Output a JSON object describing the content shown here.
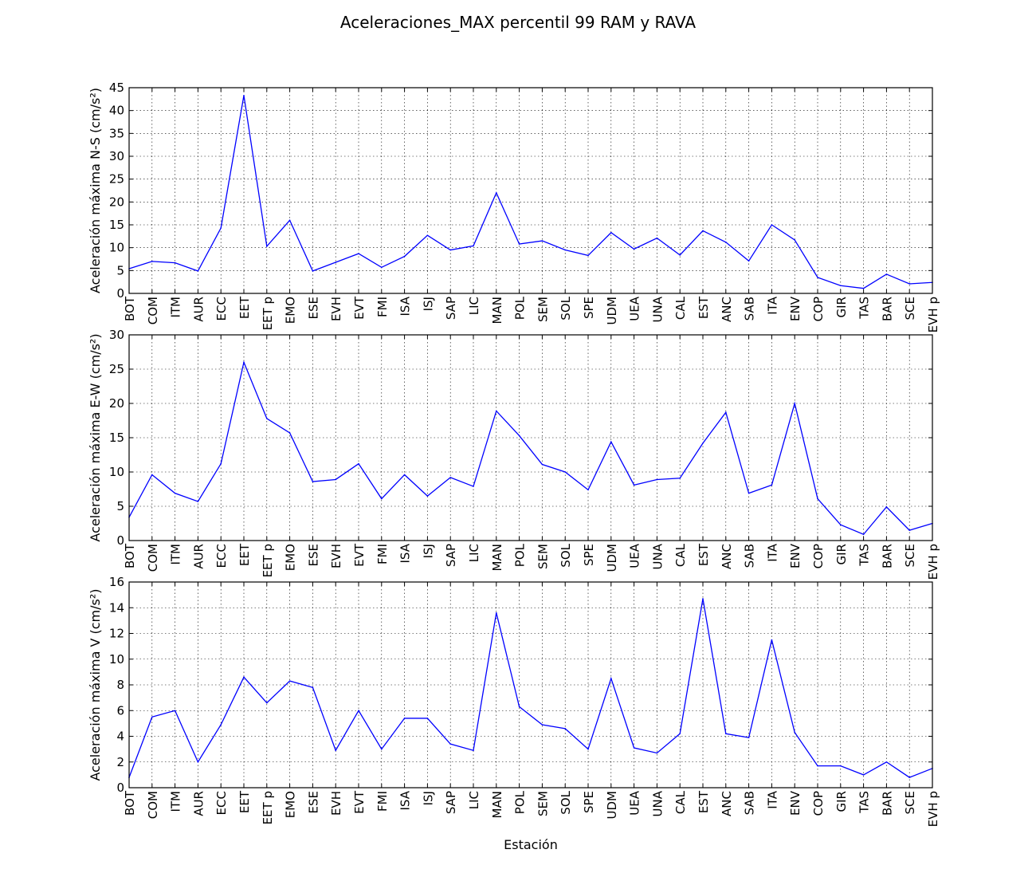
{
  "title": "Aceleraciones_MAX percentil 99 RAM y RAVA",
  "xlabel": "Estación",
  "line_color": "#0000ff",
  "chart_data": [
    {
      "type": "line",
      "ylabel": "Aceleración máxima N-S (cm/s²)",
      "ylim": [
        0,
        45
      ],
      "yticks": [
        0,
        5,
        10,
        15,
        20,
        25,
        30,
        35,
        40,
        45
      ],
      "grid": true,
      "categories": [
        "BOT",
        "COM",
        "ITM",
        "AUR",
        "ECC",
        "EET",
        "EET p",
        "EMO",
        "ESE",
        "EVH",
        "EVT",
        "FMI",
        "ISA",
        "ISJ",
        "SAP",
        "LIC",
        "MAN",
        "POL",
        "SEM",
        "SOL",
        "SPE",
        "UDM",
        "UEA",
        "UNA",
        "CAL",
        "EST",
        "ANC",
        "SAB",
        "ITA",
        "ENV",
        "COP",
        "GIR",
        "TAS",
        "BAR",
        "SCE",
        "EVH p"
      ],
      "values": [
        5.4,
        7.0,
        6.7,
        4.9,
        14.3,
        43.3,
        10.3,
        16.0,
        4.9,
        6.8,
        8.7,
        5.7,
        8.1,
        12.7,
        9.5,
        10.4,
        22.0,
        10.8,
        11.5,
        9.5,
        8.3,
        13.3,
        9.7,
        12.1,
        8.4,
        13.7,
        11.2,
        7.1,
        15.0,
        11.7,
        3.5,
        1.7,
        1.1,
        4.2,
        2.1,
        2.4
      ]
    },
    {
      "type": "line",
      "ylabel": "Aceleración máxima E-W (cm/s²)",
      "ylim": [
        0,
        30
      ],
      "yticks": [
        0,
        5,
        10,
        15,
        20,
        25,
        30
      ],
      "grid": true,
      "categories": [
        "BOT",
        "COM",
        "ITM",
        "AUR",
        "ECC",
        "EET",
        "EET p",
        "EMO",
        "ESE",
        "EVH",
        "EVT",
        "FMI",
        "ISA",
        "ISJ",
        "SAP",
        "LIC",
        "MAN",
        "POL",
        "SEM",
        "SOL",
        "SPE",
        "UDM",
        "UEA",
        "UNA",
        "CAL",
        "EST",
        "ANC",
        "SAB",
        "ITA",
        "ENV",
        "COP",
        "GIR",
        "TAS",
        "BAR",
        "SCE",
        "EVH p"
      ],
      "values": [
        3.4,
        9.6,
        6.9,
        5.7,
        11.2,
        26.0,
        17.8,
        15.7,
        8.6,
        8.9,
        11.2,
        6.1,
        9.6,
        6.5,
        9.2,
        7.9,
        18.9,
        15.3,
        11.1,
        10.0,
        7.4,
        14.4,
        8.1,
        8.9,
        9.1,
        14.2,
        18.7,
        6.9,
        8.1,
        20.0,
        6.1,
        2.3,
        0.9,
        4.9,
        1.5,
        2.5
      ]
    },
    {
      "type": "line",
      "ylabel": "Aceleración máxima V (cm/s²)",
      "ylim": [
        0,
        16
      ],
      "yticks": [
        0,
        2,
        4,
        6,
        8,
        10,
        12,
        14,
        16
      ],
      "grid": true,
      "categories": [
        "BOT",
        "COM",
        "ITM",
        "AUR",
        "ECC",
        "EET",
        "EET p",
        "EMO",
        "ESE",
        "EVH",
        "EVT",
        "FMI",
        "ISA",
        "ISJ",
        "SAP",
        "LIC",
        "MAN",
        "POL",
        "SEM",
        "SOL",
        "SPE",
        "UDM",
        "UEA",
        "UNA",
        "CAL",
        "EST",
        "ANC",
        "SAB",
        "ITA",
        "ENV",
        "COP",
        "GIR",
        "TAS",
        "BAR",
        "SCE",
        "EVH p"
      ],
      "values": [
        0.8,
        5.5,
        6.0,
        2.0,
        4.9,
        8.6,
        6.6,
        8.3,
        7.8,
        2.9,
        6.0,
        3.0,
        5.4,
        5.4,
        3.4,
        2.9,
        13.6,
        6.3,
        4.9,
        4.6,
        3.0,
        8.5,
        3.1,
        2.7,
        4.2,
        14.7,
        4.2,
        3.9,
        11.5,
        4.3,
        1.7,
        1.7,
        1.0,
        2.0,
        0.8,
        1.5
      ]
    }
  ]
}
